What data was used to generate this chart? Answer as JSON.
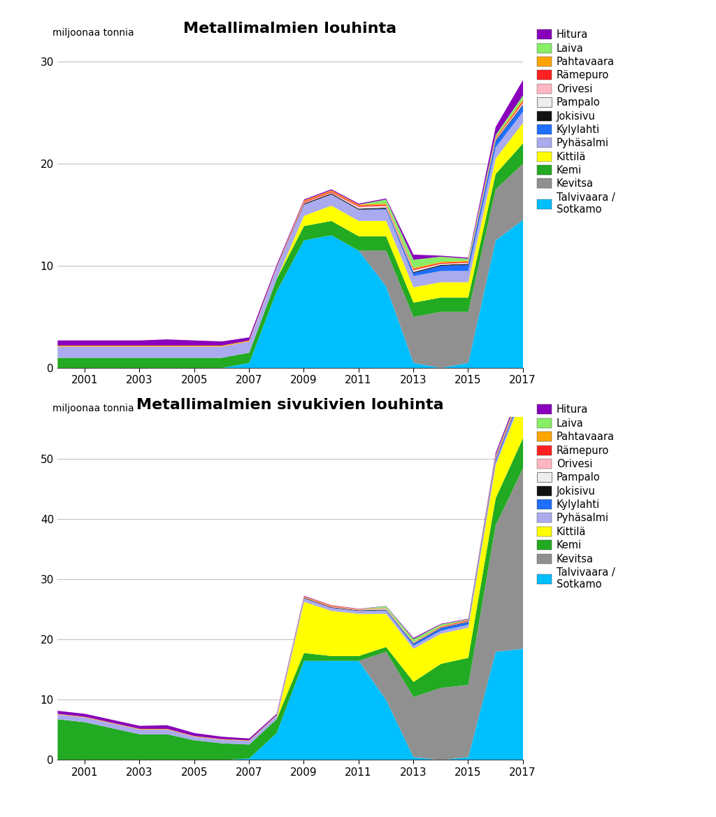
{
  "years": [
    2000,
    2001,
    2002,
    2003,
    2004,
    2005,
    2006,
    2007,
    2008,
    2009,
    2010,
    2011,
    2012,
    2013,
    2014,
    2015,
    2016,
    2017
  ],
  "title1": "Metallimalmien louhinta",
  "title2": "Metallimalmien sivukivien louhinta",
  "ylabel": "miljoonaa tonnia",
  "mines": [
    "Talvivaara /\nSotkamo",
    "Kevitsa",
    "Kemi",
    "Kittilä",
    "Pyhäsalmi",
    "Kylylahti",
    "Jokisivu",
    "Pampalo",
    "Orivesi",
    "Rämepuro",
    "Pahtavaara",
    "Laiva",
    "Hitura"
  ],
  "colors": [
    "#00BFFF",
    "#909090",
    "#22AA22",
    "#FFFF00",
    "#AAAAEE",
    "#1E6FFF",
    "#111111",
    "#EEEEEE",
    "#FFB6C1",
    "#FF2020",
    "#FFA500",
    "#88EE66",
    "#8800BB"
  ],
  "ore_data": {
    "Talvivaara /\nSotkamo": [
      0,
      0,
      0,
      0,
      0,
      0,
      0,
      0.5,
      7.5,
      12.5,
      13.0,
      11.5,
      8.0,
      0.5,
      0.0,
      0.5,
      12.5,
      14.5
    ],
    "Kevitsa": [
      0,
      0,
      0,
      0,
      0,
      0,
      0,
      0,
      0,
      0,
      0,
      0,
      3.5,
      4.5,
      5.5,
      5.0,
      5.0,
      5.5
    ],
    "Kemi": [
      1.0,
      1.0,
      1.0,
      1.0,
      1.0,
      1.0,
      1.0,
      1.0,
      1.2,
      1.4,
      1.4,
      1.4,
      1.4,
      1.4,
      1.4,
      1.4,
      1.5,
      2.0
    ],
    "Kittilä": [
      0,
      0,
      0,
      0,
      0,
      0,
      0,
      0,
      0,
      1.0,
      1.5,
      1.5,
      1.5,
      1.5,
      1.5,
      1.5,
      1.5,
      2.0
    ],
    "Pyhäsalmi": [
      1.1,
      1.1,
      1.1,
      1.1,
      1.1,
      1.1,
      1.1,
      1.1,
      1.1,
      1.1,
      1.1,
      1.1,
      1.1,
      1.1,
      1.1,
      1.1,
      1.1,
      1.1
    ],
    "Kylylahti": [
      0,
      0,
      0,
      0,
      0,
      0,
      0,
      0,
      0,
      0,
      0,
      0,
      0.1,
      0.3,
      0.5,
      0.6,
      0.6,
      0.6
    ],
    "Jokisivu": [
      0,
      0,
      0,
      0,
      0,
      0,
      0,
      0,
      0,
      0.1,
      0.1,
      0.1,
      0.1,
      0.1,
      0.1,
      0.1,
      0.1,
      0.1
    ],
    "Pampalo": [
      0,
      0,
      0,
      0,
      0,
      0,
      0,
      0,
      0,
      0,
      0,
      0.1,
      0.1,
      0.1,
      0.1,
      0.1,
      0.1,
      0.1
    ],
    "Orivesi": [
      0,
      0,
      0,
      0,
      0,
      0,
      0,
      0,
      0,
      0.1,
      0.1,
      0.1,
      0.1,
      0.1,
      0.0,
      0.0,
      0.0,
      0.1
    ],
    "Rämepuro": [
      0,
      0,
      0,
      0,
      0,
      0,
      0,
      0,
      0,
      0.1,
      0.1,
      0.1,
      0.1,
      0.1,
      0.1,
      0.1,
      0.1,
      0.15
    ],
    "Pahtavaara": [
      0.1,
      0.1,
      0.1,
      0.1,
      0.1,
      0.1,
      0.1,
      0.1,
      0.1,
      0.1,
      0.1,
      0.1,
      0.1,
      0.1,
      0.1,
      0.1,
      0.1,
      0.15
    ],
    "Laiva": [
      0,
      0,
      0,
      0,
      0,
      0,
      0,
      0,
      0,
      0,
      0,
      0,
      0.4,
      0.8,
      0.5,
      0.2,
      0.2,
      0.4
    ],
    "Hitura": [
      0.5,
      0.5,
      0.5,
      0.5,
      0.6,
      0.5,
      0.4,
      0.3,
      0.2,
      0.1,
      0.1,
      0.1,
      0.1,
      0.5,
      0.1,
      0.1,
      0.8,
      1.5
    ]
  },
  "waste_data": {
    "Talvivaara /\nSotkamo": [
      0,
      0,
      0,
      0,
      0,
      0,
      0,
      0.3,
      4.5,
      16.5,
      16.5,
      16.5,
      10.0,
      0.5,
      0.0,
      0.5,
      18.0,
      18.5
    ],
    "Kevitsa": [
      0,
      0,
      0,
      0,
      0,
      0,
      0,
      0,
      0,
      0,
      0,
      0,
      8.0,
      10.0,
      12.0,
      12.0,
      21.0,
      30.0
    ],
    "Kemi": [
      6.8,
      6.3,
      5.3,
      4.3,
      4.3,
      3.3,
      2.8,
      2.3,
      2.3,
      1.3,
      0.8,
      0.8,
      0.8,
      2.5,
      4.0,
      4.5,
      4.5,
      5.0
    ],
    "Kittilä": [
      0,
      0,
      0,
      0,
      0,
      0,
      0,
      0,
      0,
      8.5,
      7.5,
      7.0,
      5.5,
      5.5,
      5.0,
      5.0,
      5.5,
      7.0
    ],
    "Pyhäsalmi": [
      0.8,
      0.8,
      0.8,
      0.8,
      0.8,
      0.6,
      0.6,
      0.6,
      0.6,
      0.6,
      0.5,
      0.5,
      0.5,
      0.5,
      0.5,
      0.5,
      0.5,
      0.5
    ],
    "Kylylahti": [
      0,
      0,
      0,
      0,
      0,
      0,
      0,
      0,
      0,
      0,
      0,
      0,
      0.1,
      0.3,
      0.4,
      0.4,
      0.4,
      0.4
    ],
    "Jokisivu": [
      0,
      0,
      0,
      0,
      0,
      0,
      0,
      0,
      0,
      0.1,
      0.1,
      0.1,
      0.1,
      0.1,
      0.1,
      0.1,
      0.1,
      0.1
    ],
    "Pampalo": [
      0,
      0,
      0,
      0,
      0,
      0,
      0,
      0,
      0,
      0,
      0,
      0.05,
      0.1,
      0.05,
      0.05,
      0.05,
      0.05,
      0.05
    ],
    "Orivesi": [
      0,
      0,
      0,
      0,
      0,
      0,
      0,
      0,
      0,
      0.05,
      0.1,
      0.05,
      0.05,
      0.05,
      0.05,
      0.05,
      0.1,
      0.1
    ],
    "Rämepuro": [
      0,
      0,
      0,
      0,
      0,
      0,
      0,
      0,
      0,
      0.05,
      0.1,
      0.05,
      0.05,
      0.05,
      0.1,
      0.15,
      0.2,
      0.2
    ],
    "Pahtavaara": [
      0.1,
      0.1,
      0.1,
      0.1,
      0.1,
      0.1,
      0.1,
      0.1,
      0.1,
      0.1,
      0.1,
      0.05,
      0.05,
      0.05,
      0.05,
      0.05,
      0.1,
      0.1
    ],
    "Laiva": [
      0,
      0,
      0,
      0,
      0,
      0,
      0,
      0,
      0,
      0,
      0,
      0,
      0.3,
      0.5,
      0.3,
      0.1,
      0.2,
      0.3
    ],
    "Hitura": [
      0.5,
      0.5,
      0.5,
      0.5,
      0.6,
      0.5,
      0.4,
      0.3,
      0.2,
      0.1,
      0.05,
      0.05,
      0.05,
      0.2,
      0.1,
      0.1,
      0.4,
      0.5
    ]
  },
  "ylim1": [
    0,
    32
  ],
  "ylim2": [
    0,
    57
  ],
  "yticks1": [
    0,
    10,
    20,
    30
  ],
  "yticks2": [
    0,
    10,
    20,
    30,
    40,
    50
  ],
  "xticks": [
    2001,
    2003,
    2005,
    2007,
    2009,
    2011,
    2013,
    2015,
    2017
  ]
}
